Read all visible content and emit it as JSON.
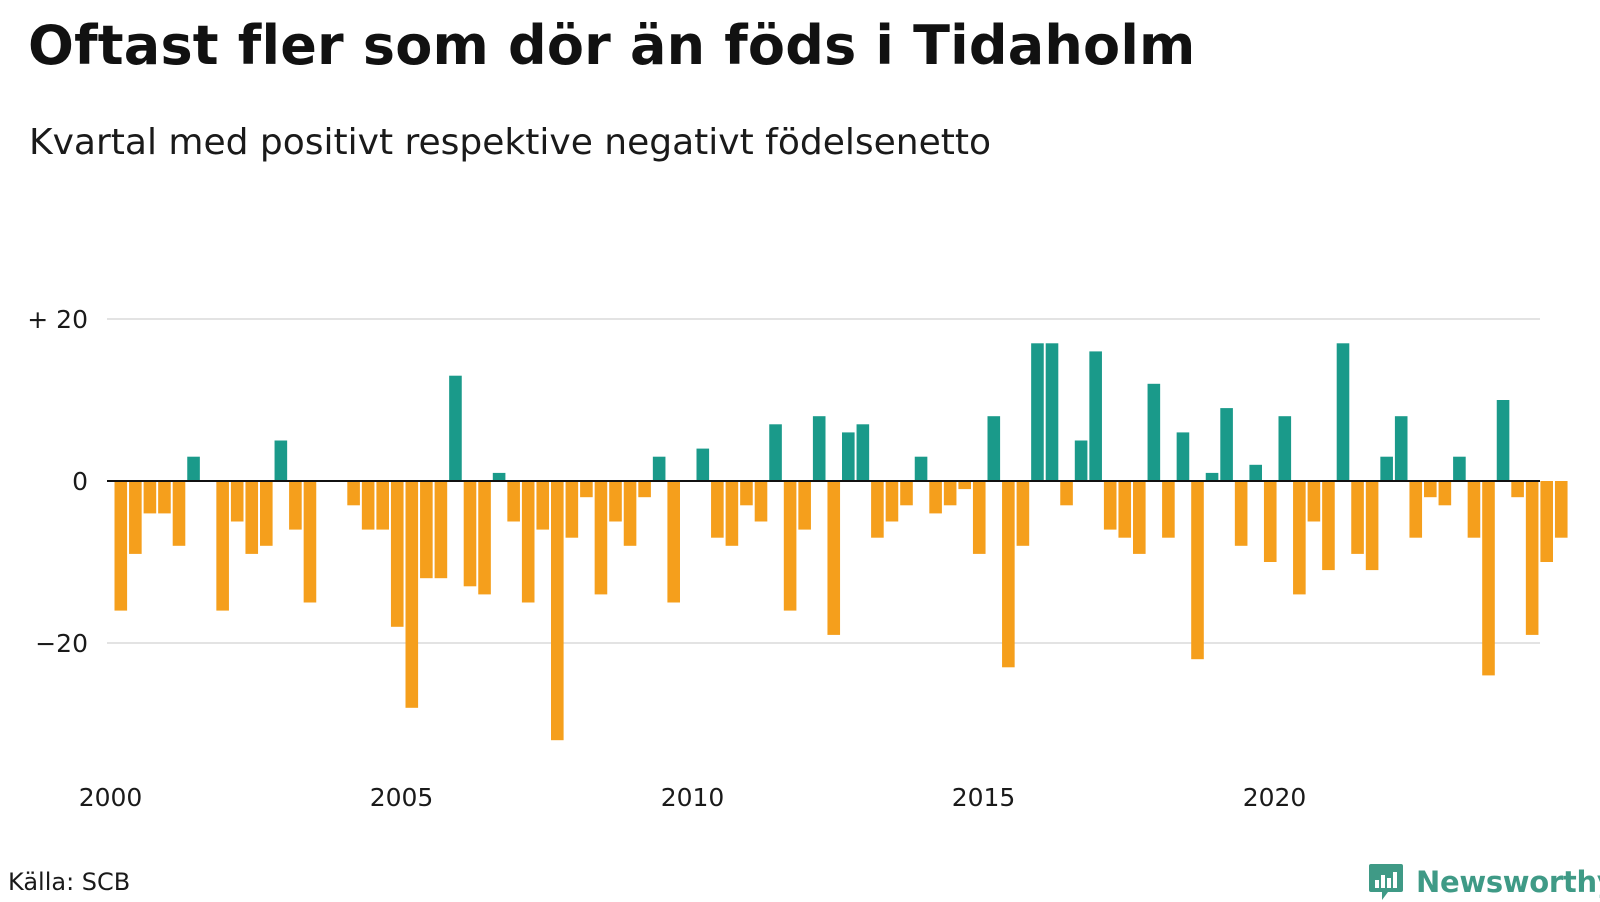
{
  "title": "Oftast fler som dör än föds i Tidaholm",
  "subtitle": "Kvartal med positivt respektive negativt födelsenetto",
  "source": "Källa: SCB",
  "brand": {
    "name": "Newsworthy",
    "icon": "newsworthy-logo-icon",
    "color": "#3f9a86"
  },
  "colors": {
    "positive": "#1a9a8a",
    "negative": "#f59f1c",
    "grid": "#e3e3e3",
    "baseline": "#111111"
  },
  "chart_data": {
    "type": "bar",
    "title": "Oftast fler som dör än föds i Tidaholm",
    "subtitle": "Kvartal med positivt respektive negativt födelsenetto",
    "xlabel": "",
    "ylabel": "",
    "ylim": [
      -33,
      30
    ],
    "y_ticks": [
      {
        "value": 20,
        "label": "+ 20"
      },
      {
        "value": 0,
        "label": "0"
      },
      {
        "value": -20,
        "label": "−20"
      }
    ],
    "x_tick_labels": [
      "2000",
      "2005",
      "2010",
      "2015",
      "2020"
    ],
    "grid": true,
    "legend": "none",
    "start_period": "2000 Q1",
    "periodicity": "quarterly",
    "categories": [
      "2000 Q1",
      "2000 Q2",
      "2000 Q3",
      "2000 Q4",
      "2001 Q1",
      "2001 Q2",
      "2001 Q3",
      "2001 Q4",
      "2002 Q1",
      "2002 Q2",
      "2002 Q3",
      "2002 Q4",
      "2003 Q1",
      "2003 Q2",
      "2003 Q3",
      "2003 Q4",
      "2004 Q1",
      "2004 Q2",
      "2004 Q3",
      "2004 Q4",
      "2005 Q1",
      "2005 Q2",
      "2005 Q3",
      "2005 Q4",
      "2006 Q1",
      "2006 Q2",
      "2006 Q3",
      "2006 Q4",
      "2007 Q1",
      "2007 Q2",
      "2007 Q3",
      "2007 Q4",
      "2008 Q1",
      "2008 Q2",
      "2008 Q3",
      "2008 Q4",
      "2009 Q1",
      "2009 Q2",
      "2009 Q3",
      "2009 Q4",
      "2010 Q1",
      "2010 Q2",
      "2010 Q3",
      "2010 Q4",
      "2011 Q1",
      "2011 Q2",
      "2011 Q3",
      "2011 Q4",
      "2012 Q1",
      "2012 Q2",
      "2012 Q3",
      "2012 Q4",
      "2013 Q1",
      "2013 Q2",
      "2013 Q3",
      "2013 Q4",
      "2014 Q1",
      "2014 Q2",
      "2014 Q3",
      "2014 Q4",
      "2015 Q1",
      "2015 Q2",
      "2015 Q3",
      "2015 Q4",
      "2016 Q1",
      "2016 Q2",
      "2016 Q3",
      "2016 Q4",
      "2017 Q1",
      "2017 Q2",
      "2017 Q3",
      "2017 Q4",
      "2018 Q1",
      "2018 Q2",
      "2018 Q3",
      "2018 Q4",
      "2019 Q1",
      "2019 Q2",
      "2019 Q3",
      "2019 Q4",
      "2020 Q1",
      "2020 Q2",
      "2020 Q3",
      "2020 Q4",
      "2021 Q1",
      "2021 Q2",
      "2021 Q3",
      "2021 Q4",
      "2022 Q1",
      "2022 Q2",
      "2022 Q3",
      "2022 Q4",
      "2023 Q1",
      "2023 Q2",
      "2023 Q3",
      "2023 Q4",
      "2024 Q1",
      "2024 Q2",
      "2024 Q3",
      "2024 Q4"
    ],
    "values": [
      -16,
      -9,
      -4,
      -4,
      -8,
      3,
      0,
      -16,
      -5,
      -9,
      -8,
      5,
      -6,
      -15,
      0,
      0,
      -3,
      -6,
      -6,
      -18,
      -28,
      -12,
      -12,
      13,
      -13,
      -14,
      1,
      -5,
      -15,
      -6,
      -32,
      -7,
      -2,
      -14,
      -5,
      -8,
      -2,
      3,
      -15,
      0,
      4,
      -7,
      -8,
      -3,
      -5,
      7,
      -16,
      -6,
      8,
      -19,
      6,
      7,
      -7,
      -5,
      -3,
      3,
      -4,
      -3,
      -1,
      -9,
      8,
      -23,
      -8,
      17,
      17,
      -3,
      5,
      16,
      -6,
      -7,
      -9,
      12,
      -7,
      6,
      -22,
      1,
      9,
      -8,
      2,
      -10,
      8,
      -14,
      -5,
      -11,
      17,
      -9,
      -11,
      3,
      8,
      -7,
      -2,
      -3,
      3,
      -7,
      -24,
      10,
      -2,
      -19,
      -10,
      -7
    ]
  }
}
